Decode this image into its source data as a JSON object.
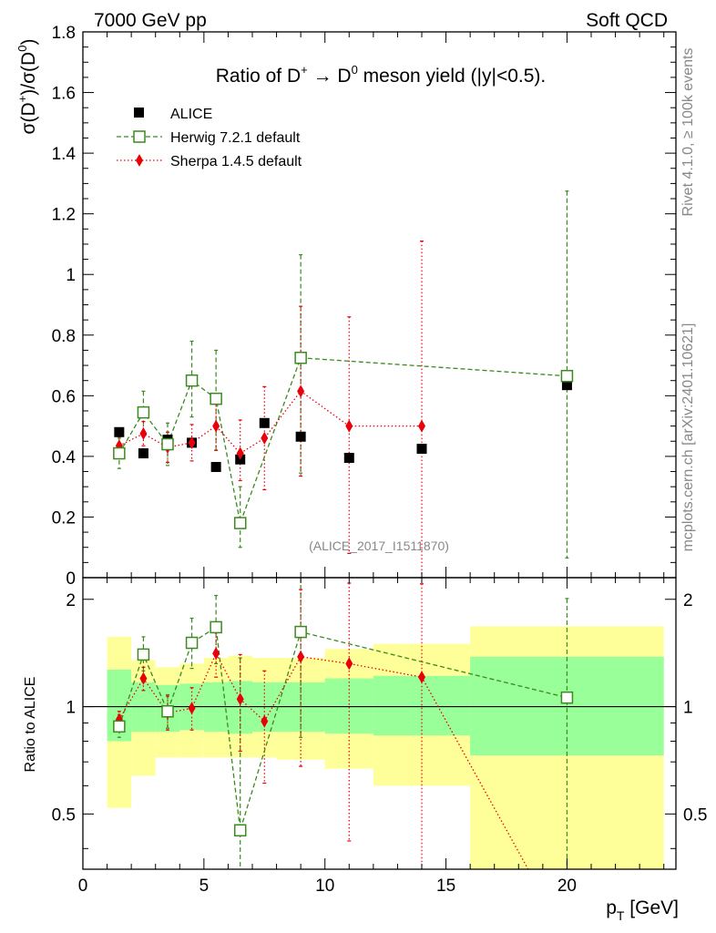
{
  "header": {
    "left": "7000 GeV pp",
    "right": "Soft QCD"
  },
  "side_labels": {
    "rivet": "Rivet 4.1.0, ≥ 100k events",
    "mcplots": "mcplots.cern.ch [arXiv:2401.10621]"
  },
  "colors": {
    "alice": "#000000",
    "herwig": "#3a8a1e",
    "sherpa": "#e8000b",
    "band_inner": "#99ff99",
    "band_outer": "#ffff99"
  },
  "chart_data": [
    {
      "type": "scatter",
      "title": "Ratio of D⁺ → D⁰ meson yield (|y|<0.5).",
      "title_parts": {
        "pre": "Ratio of D",
        "sup1": "+",
        "arrow": " → D",
        "sup2": "0",
        "post": " meson yield (|y|<0.5)."
      },
      "ylabel": "σ(D⁺)/σ(D⁰)",
      "ylabel_parts": {
        "a": "σ(D",
        "s1": "+",
        "b": ")/σ(D",
        "s2": "0",
        "c": ")"
      },
      "xlim": [
        0,
        24.5
      ],
      "ylim": [
        0,
        1.8
      ],
      "yticks": [
        "0",
        "0.2",
        "0.4",
        "0.6",
        "0.8",
        "1",
        "1.2",
        "1.4",
        "1.6",
        "1.8"
      ],
      "legend_position": "top-left",
      "watermark": "(ALICE_2017_I1511870)",
      "series": [
        {
          "name": "ALICE",
          "marker": "filled-square",
          "x": [
            1.5,
            2.5,
            3.5,
            4.5,
            5.5,
            6.5,
            7.5,
            9,
            11,
            14,
            20
          ],
          "y": [
            0.48,
            0.41,
            0.455,
            0.445,
            0.365,
            0.39,
            0.51,
            0.465,
            0.395,
            0.425,
            0.635
          ]
        },
        {
          "name": "Herwig 7.2.1 default",
          "marker": "open-square",
          "line": "dashed",
          "x": [
            1.5,
            2.5,
            3.5,
            4.5,
            5.5,
            6.5,
            9,
            20
          ],
          "y": [
            0.41,
            0.545,
            0.44,
            0.65,
            0.59,
            0.18,
            0.725,
            0.665
          ],
          "yerr_low": [
            0.05,
            0.07,
            0.07,
            0.12,
            0.17,
            0.08,
            0.38,
            0.6
          ],
          "yerr_high": [
            0.05,
            0.07,
            0.07,
            0.13,
            0.16,
            0.12,
            0.34,
            0.61
          ]
        },
        {
          "name": "Sherpa 1.4.5 default",
          "marker": "diamond",
          "line": "dotted",
          "x": [
            1.5,
            2.5,
            3.5,
            4.5,
            5.5,
            6.5,
            7.5,
            9,
            11,
            14
          ],
          "y": [
            0.435,
            0.475,
            0.43,
            0.445,
            0.5,
            0.41,
            0.46,
            0.615,
            0.5,
            0.5
          ],
          "yerr_low": [
            0.03,
            0.04,
            0.05,
            0.06,
            0.08,
            0.09,
            0.17,
            0.28,
            0.42,
            0.5
          ],
          "yerr_high": [
            0.03,
            0.04,
            0.05,
            0.06,
            0.08,
            0.11,
            0.17,
            0.28,
            0.36,
            0.61
          ]
        }
      ]
    },
    {
      "type": "scatter",
      "ylabel": "Ratio to ALICE",
      "xlabel": "p_T [GeV]",
      "xlabel_parts": {
        "p": "p",
        "sub": "T",
        "unit": " [GeV]"
      },
      "xlim": [
        0,
        24.5
      ],
      "ylim": [
        0.35,
        2.3
      ],
      "yscale": "log",
      "xticks": [
        "0",
        "5",
        "10",
        "15",
        "20"
      ],
      "yticks": [
        "0.5",
        "1",
        "2"
      ],
      "bands": [
        {
          "x0": 1,
          "x1": 2,
          "inner": [
            0.8,
            1.27
          ],
          "outer": [
            0.52,
            1.57
          ]
        },
        {
          "x0": 2,
          "x1": 3,
          "inner": [
            0.85,
            1.17
          ],
          "outer": [
            0.64,
            1.35
          ]
        },
        {
          "x0": 3,
          "x1": 4,
          "inner": [
            0.85,
            1.15
          ],
          "outer": [
            0.72,
            1.29
          ]
        },
        {
          "x0": 4,
          "x1": 5,
          "inner": [
            0.86,
            1.16
          ],
          "outer": [
            0.72,
            1.32
          ]
        },
        {
          "x0": 5,
          "x1": 6,
          "inner": [
            0.85,
            1.17
          ],
          "outer": [
            0.72,
            1.37
          ]
        },
        {
          "x0": 6,
          "x1": 7,
          "inner": [
            0.84,
            1.18
          ],
          "outer": [
            0.72,
            1.39
          ]
        },
        {
          "x0": 7,
          "x1": 8,
          "inner": [
            0.85,
            1.17
          ],
          "outer": [
            0.72,
            1.37
          ]
        },
        {
          "x0": 8,
          "x1": 10,
          "inner": [
            0.85,
            1.17
          ],
          "outer": [
            0.71,
            1.37
          ]
        },
        {
          "x0": 10,
          "x1": 12,
          "inner": [
            0.84,
            1.2
          ],
          "outer": [
            0.67,
            1.45
          ]
        },
        {
          "x0": 12,
          "x1": 16,
          "inner": [
            0.83,
            1.22
          ],
          "outer": [
            0.6,
            1.5
          ]
        },
        {
          "x0": 16,
          "x1": 24,
          "inner": [
            0.73,
            1.38
          ],
          "outer": [
            0.35,
            1.68
          ]
        }
      ],
      "series": [
        {
          "name": "Herwig 7.2.1 default",
          "marker": "open-square",
          "line": "dashed",
          "x": [
            1.5,
            2.5,
            3.5,
            4.5,
            5.5,
            6.5,
            9,
            20
          ],
          "y": [
            0.88,
            1.4,
            0.97,
            1.51,
            1.67,
            0.45,
            1.62,
            1.06
          ],
          "yerr_low": [
            0.06,
            0.14,
            0.1,
            0.23,
            0.35,
            0.2,
            0.8,
            0.95
          ],
          "yerr_high": [
            0.07,
            0.17,
            0.11,
            0.26,
            0.38,
            0.92,
            0.9,
            0.95
          ]
        },
        {
          "name": "Sherpa 1.4.5 default",
          "marker": "diamond",
          "line": "dotted",
          "x": [
            1.5,
            2.5,
            3.5,
            4.5,
            5.5,
            6.5,
            7.5,
            9,
            11,
            14
          ],
          "y": [
            0.92,
            1.2,
            0.96,
            0.99,
            1.41,
            1.05,
            0.91,
            1.38,
            1.32,
            1.21
          ],
          "yerr_low": [
            0.05,
            0.09,
            0.1,
            0.13,
            0.2,
            0.3,
            0.3,
            0.7,
            0.9,
            0.95
          ],
          "yerr_high": [
            0.05,
            0.09,
            0.11,
            0.14,
            0.2,
            0.35,
            0.35,
            0.75,
            0.9,
            1.0
          ],
          "tail_to_x": 18.5
        }
      ]
    }
  ]
}
